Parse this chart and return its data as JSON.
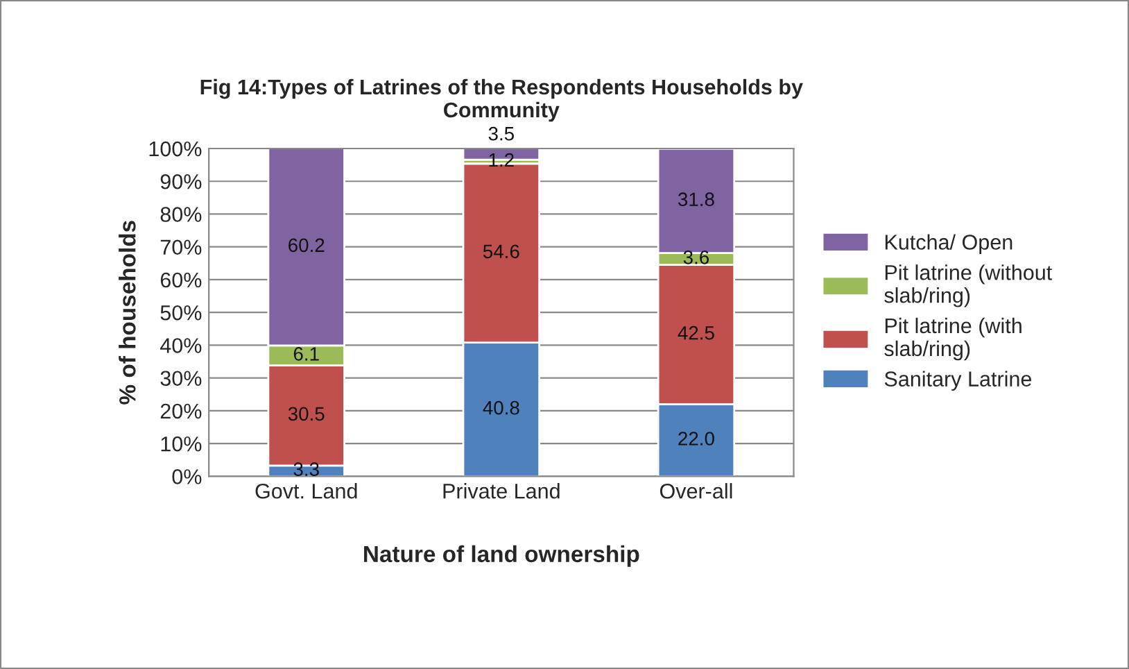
{
  "chart_data": {
    "type": "bar",
    "stacked": true,
    "title": "Fig 14:Types of Latrines of the Respondents Households by Community",
    "xlabel": "Nature of land ownership",
    "ylabel": "% of households",
    "categories": [
      "Govt. Land",
      "Private Land",
      "Over-all"
    ],
    "series": [
      {
        "name": "Sanitary Latrine",
        "color": "#4f81bd",
        "values": [
          3.3,
          40.8,
          22.0
        ],
        "value_labels": [
          "3.3",
          "40.8",
          "22.0"
        ]
      },
      {
        "name": "Pit latrine (with slab/ring)",
        "color": "#c0504d",
        "values": [
          30.5,
          54.6,
          42.5
        ],
        "value_labels": [
          "30.5",
          "54.6",
          "42.5"
        ]
      },
      {
        "name": "Pit latrine (without slab/ring)",
        "color": "#9bbb59",
        "values": [
          6.1,
          1.2,
          3.6
        ],
        "value_labels": [
          "6.1",
          "1.2",
          "3.6"
        ]
      },
      {
        "name": "Kutcha/ Open",
        "color": "#8064a2",
        "values": [
          60.2,
          3.5,
          31.8
        ],
        "value_labels": [
          "60.2",
          "3.5",
          "31.8"
        ]
      }
    ],
    "ylim": [
      0,
      100
    ],
    "yticks": [
      {
        "value": 0,
        "label": "0%"
      },
      {
        "value": 10,
        "label": "10%"
      },
      {
        "value": 20,
        "label": "20%"
      },
      {
        "value": 30,
        "label": "30%"
      },
      {
        "value": 40,
        "label": "40%"
      },
      {
        "value": 50,
        "label": "50%"
      },
      {
        "value": 60,
        "label": "60%"
      },
      {
        "value": 70,
        "label": "70%"
      },
      {
        "value": 80,
        "label": "80%"
      },
      {
        "value": 90,
        "label": "90%"
      },
      {
        "value": 100,
        "label": "100%"
      }
    ],
    "grid": "y",
    "legend": "right"
  }
}
